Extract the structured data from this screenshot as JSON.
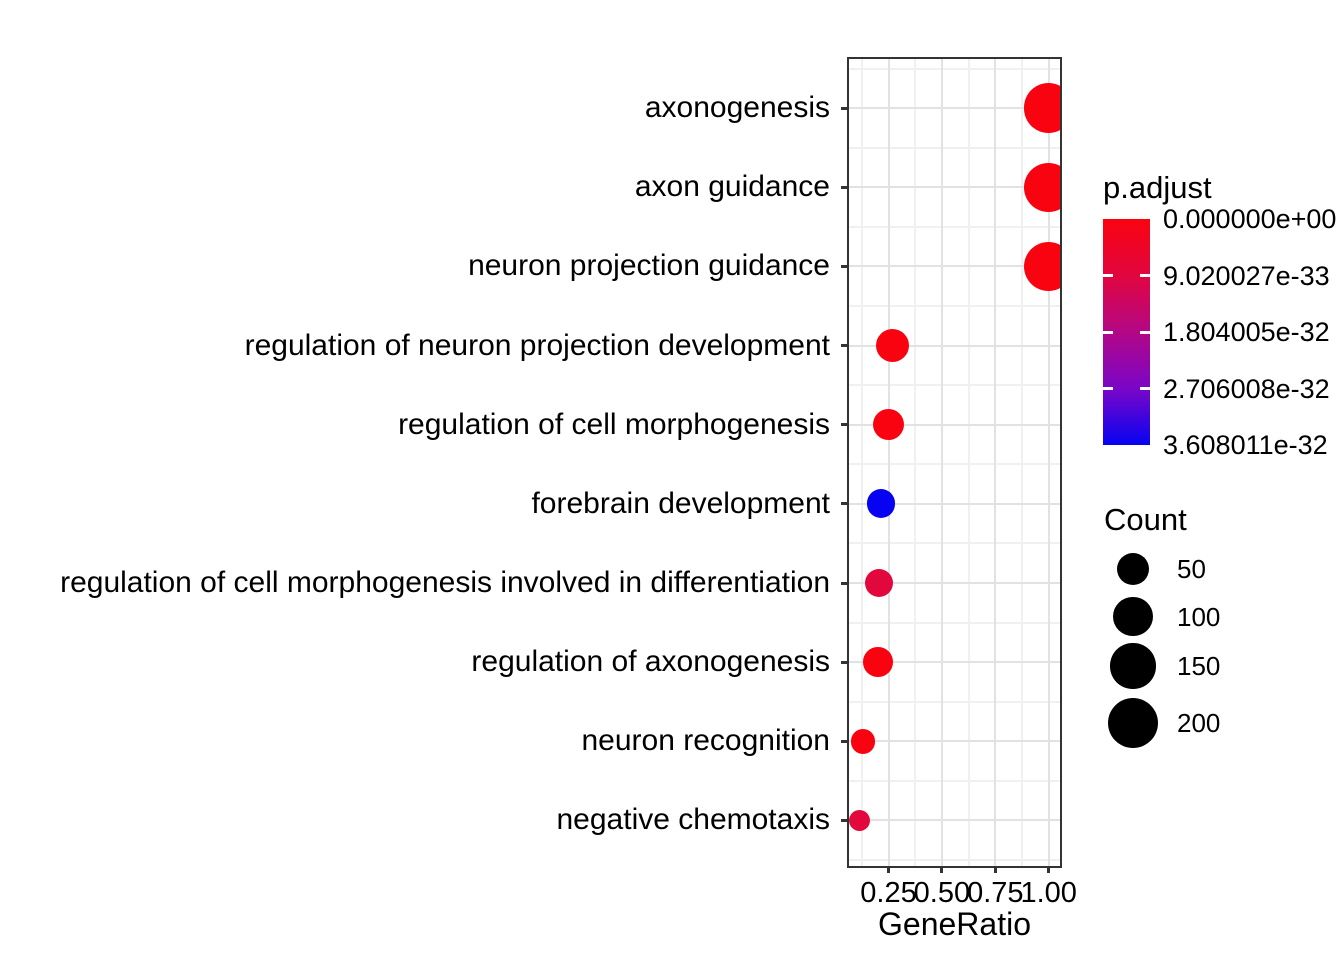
{
  "chart_data": {
    "type": "scatter",
    "title": "",
    "xlabel": "GeneRatio",
    "ylabel": "",
    "x_ticks": [
      0.25,
      0.5,
      0.75,
      1.0
    ],
    "x_tick_labels": [
      "0.25",
      "0.50",
      "0.75",
      "1.00"
    ],
    "x_minor_breaks": [
      0.125,
      0.375,
      0.625,
      0.875
    ],
    "xlim": [
      0.06,
      1.05
    ],
    "grid": "on",
    "legend_position": "right",
    "categories": [
      "axonogenesis",
      "axon guidance",
      "neuron projection guidance",
      "regulation of neuron projection development",
      "regulation of cell morphogenesis",
      "forebrain development",
      "regulation of cell morphogenesis involved in differentiation",
      "regulation of axonogenesis",
      "neuron recognition",
      "negative chemotaxis"
    ],
    "points": [
      {
        "term": "axonogenesis",
        "gene_ratio": 1.0,
        "count": 194,
        "p_adjust": 0.0,
        "color": "#FA0310"
      },
      {
        "term": "axon guidance",
        "gene_ratio": 1.0,
        "count": 188,
        "p_adjust": 0.0,
        "color": "#FA0310"
      },
      {
        "term": "neuron projection guidance",
        "gene_ratio": 1.0,
        "count": 191,
        "p_adjust": 0.0,
        "color": "#FA0310"
      },
      {
        "term": "regulation of neuron projection development",
        "gene_ratio": 0.27,
        "count": 56,
        "p_adjust": 0.0,
        "color": "#FA0310"
      },
      {
        "term": "regulation of cell morphogenesis",
        "gene_ratio": 0.25,
        "count": 45,
        "p_adjust": 0.0,
        "color": "#FA0310"
      },
      {
        "term": "forebrain development",
        "gene_ratio": 0.215,
        "count": 34,
        "p_adjust": 3.608011e-32,
        "color": "#0703F2"
      },
      {
        "term": "regulation of cell morphogenesis involved in differentiation",
        "gene_ratio": 0.205,
        "count": 32,
        "p_adjust": 4.5e-33,
        "color": "#E2083E"
      },
      {
        "term": "regulation of axonogenesis",
        "gene_ratio": 0.2,
        "count": 37,
        "p_adjust": 0.0,
        "color": "#FA0310"
      },
      {
        "term": "neuron recognition",
        "gene_ratio": 0.13,
        "count": 17,
        "p_adjust": 0.0,
        "color": "#FA0310"
      },
      {
        "term": "negative chemotaxis",
        "gene_ratio": 0.115,
        "count": 9,
        "p_adjust": 4.5e-33,
        "color": "#E2083E"
      }
    ]
  },
  "legends": {
    "padjust": {
      "title": "p.adjust",
      "tick_labels": [
        "0.000000e+00",
        "9.020027e-33",
        "1.804005e-32",
        "2.706008e-32",
        "3.608011e-32"
      ],
      "tick_values": [
        0.0,
        9.020027e-33,
        1.804005e-32,
        2.706008e-32,
        3.608011e-32
      ],
      "gradient": [
        "#FA0310",
        "#E2063F",
        "#B30786",
        "#7A06C8",
        "#0703F2"
      ]
    },
    "count": {
      "title": "Count",
      "circle_color": "#000000",
      "items": [
        {
          "label": "50",
          "value": 50
        },
        {
          "label": "100",
          "value": 100
        },
        {
          "label": "150",
          "value": 150
        },
        {
          "label": "200",
          "value": 200
        }
      ]
    }
  }
}
